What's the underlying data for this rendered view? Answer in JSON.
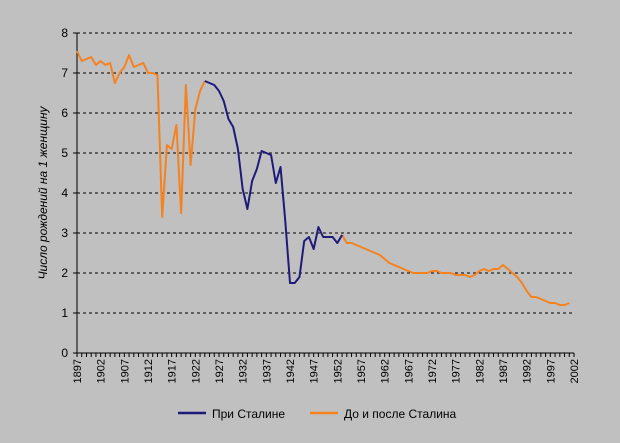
{
  "chart_data": {
    "type": "line",
    "title": "",
    "xlabel": "",
    "ylabel": "Число рождений на 1 женщину",
    "xlim": [
      1897,
      2002
    ],
    "ylim": [
      0,
      8
    ],
    "x_ticks": [
      "1897",
      "1902",
      "1907",
      "1912",
      "1917",
      "1922",
      "1927",
      "1932",
      "1937",
      "1942",
      "1947",
      "1952",
      "1957",
      "1962",
      "1967",
      "1972",
      "1977",
      "1982",
      "1987",
      "1992",
      "1997",
      "2002"
    ],
    "y_ticks": [
      "0",
      "1",
      "2",
      "3",
      "4",
      "5",
      "6",
      "7",
      "8"
    ],
    "grid": "horizontal dashed",
    "legend_position": "bottom",
    "series": [
      {
        "name": "При Сталине",
        "color": "#1f1a7a",
        "points": [
          [
            1924,
            6.8
          ],
          [
            1925,
            6.75
          ],
          [
            1926,
            6.7
          ],
          [
            1927,
            6.55
          ],
          [
            1928,
            6.3
          ],
          [
            1929,
            5.85
          ],
          [
            1930,
            5.65
          ],
          [
            1931,
            5.1
          ],
          [
            1932,
            4.1
          ],
          [
            1933,
            3.6
          ],
          [
            1934,
            4.3
          ],
          [
            1935,
            4.6
          ],
          [
            1936,
            5.05
          ],
          [
            1937,
            5.0
          ],
          [
            1938,
            4.95
          ],
          [
            1939,
            4.25
          ],
          [
            1940,
            4.65
          ],
          [
            1941,
            3.3
          ],
          [
            1942,
            1.75
          ],
          [
            1943,
            1.75
          ],
          [
            1944,
            1.9
          ],
          [
            1945,
            2.8
          ],
          [
            1946,
            2.9
          ],
          [
            1947,
            2.6
          ],
          [
            1948,
            3.15
          ],
          [
            1949,
            2.9
          ],
          [
            1950,
            2.9
          ],
          [
            1951,
            2.9
          ],
          [
            1952,
            2.75
          ],
          [
            1953,
            2.95
          ]
        ]
      },
      {
        "name": "До и после Сталина",
        "color": "#f5821f",
        "segments": [
          [
            [
              1897,
              7.55
            ],
            [
              1898,
              7.3
            ],
            [
              1899,
              7.35
            ],
            [
              1900,
              7.4
            ],
            [
              1901,
              7.2
            ],
            [
              1902,
              7.3
            ],
            [
              1903,
              7.2
            ],
            [
              1904,
              7.25
            ],
            [
              1905,
              6.75
            ],
            [
              1906,
              7.0
            ],
            [
              1907,
              7.15
            ],
            [
              1908,
              7.45
            ],
            [
              1909,
              7.15
            ],
            [
              1910,
              7.2
            ],
            [
              1911,
              7.25
            ],
            [
              1912,
              7.0
            ],
            [
              1913,
              7.0
            ],
            [
              1914,
              6.95
            ],
            [
              1915,
              3.4
            ],
            [
              1916,
              5.2
            ],
            [
              1917,
              5.1
            ],
            [
              1918,
              5.7
            ],
            [
              1919,
              3.5
            ],
            [
              1920,
              6.7
            ],
            [
              1921,
              4.7
            ],
            [
              1922,
              6.1
            ],
            [
              1923,
              6.55
            ],
            [
              1924,
              6.8
            ]
          ],
          [
            [
              1953,
              2.95
            ],
            [
              1954,
              2.75
            ],
            [
              1955,
              2.75
            ],
            [
              1956,
              2.7
            ],
            [
              1957,
              2.65
            ],
            [
              1958,
              2.6
            ],
            [
              1959,
              2.55
            ],
            [
              1960,
              2.5
            ],
            [
              1961,
              2.45
            ],
            [
              1962,
              2.35
            ],
            [
              1963,
              2.25
            ],
            [
              1964,
              2.2
            ],
            [
              1965,
              2.15
            ],
            [
              1966,
              2.1
            ],
            [
              1967,
              2.05
            ],
            [
              1968,
              2.0
            ],
            [
              1969,
              2.0
            ],
            [
              1970,
              2.0
            ],
            [
              1971,
              2.0
            ],
            [
              1972,
              2.05
            ],
            [
              1973,
              2.05
            ],
            [
              1974,
              2.0
            ],
            [
              1975,
              2.0
            ],
            [
              1976,
              2.0
            ],
            [
              1977,
              1.95
            ],
            [
              1978,
              1.95
            ],
            [
              1979,
              1.95
            ],
            [
              1980,
              1.9
            ],
            [
              1981,
              1.95
            ],
            [
              1982,
              2.05
            ],
            [
              1983,
              2.1
            ],
            [
              1984,
              2.05
            ],
            [
              1985,
              2.1
            ],
            [
              1986,
              2.1
            ],
            [
              1987,
              2.2
            ],
            [
              1988,
              2.1
            ],
            [
              1989,
              2.0
            ],
            [
              1990,
              1.9
            ],
            [
              1991,
              1.75
            ],
            [
              1992,
              1.55
            ],
            [
              1993,
              1.4
            ],
            [
              1994,
              1.4
            ],
            [
              1995,
              1.35
            ],
            [
              1996,
              1.3
            ],
            [
              1997,
              1.25
            ],
            [
              1998,
              1.25
            ],
            [
              1999,
              1.2
            ],
            [
              2000,
              1.2
            ],
            [
              2001,
              1.25
            ]
          ]
        ]
      }
    ]
  }
}
